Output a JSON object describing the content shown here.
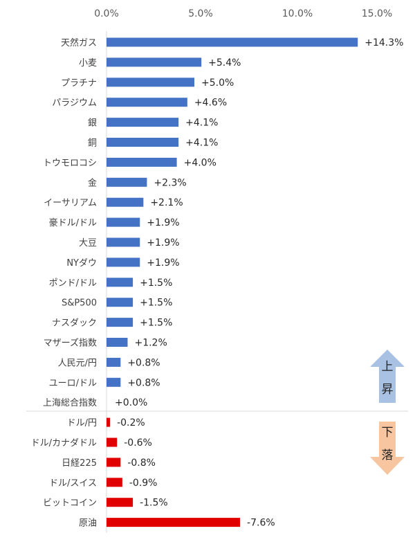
{
  "chart_data": {
    "type": "bar",
    "orientation": "horizontal",
    "title": "",
    "xlabel": "",
    "ylabel": "",
    "xlim": [
      0,
      15
    ],
    "x_ticks": [
      "0.0%",
      "5.0%",
      "10.0%",
      "15.0%"
    ],
    "x_axis_position": "top",
    "grid": false,
    "note": "",
    "categories": [
      "天然ガス",
      "小麦",
      "プラチナ",
      "パラジウム",
      "銀",
      "銅",
      "トウモロコシ",
      "金",
      "イーサリアム",
      "豪ドル/ドル",
      "大豆",
      "NYダウ",
      "ポンド/ドル",
      "S&P500",
      "ナスダック",
      "マザーズ指数",
      "人民元/円",
      "ユーロ/ドル",
      "上海総合指数",
      "ドル/円",
      "ドル/カナダドル",
      "日経225",
      "ドル/スイス",
      "ビットコイン",
      "原油"
    ],
    "values": [
      14.3,
      5.4,
      5.0,
      4.6,
      4.1,
      4.1,
      4.0,
      2.3,
      2.1,
      1.9,
      1.9,
      1.9,
      1.5,
      1.5,
      1.5,
      1.2,
      0.8,
      0.8,
      0.0,
      -0.2,
      -0.6,
      -0.8,
      -0.9,
      -1.5,
      -7.6
    ],
    "data_labels": [
      "+14.3%",
      "+5.4%",
      "+5.0%",
      "+4.6%",
      "+4.1%",
      "+4.1%",
      "+4.0%",
      "+2.3%",
      "+2.1%",
      "+1.9%",
      "+1.9%",
      "+1.9%",
      "+1.5%",
      "+1.5%",
      "+1.5%",
      "+1.2%",
      "+0.8%",
      "+0.8%",
      "+0.0%",
      "-0.2%",
      "-0.6%",
      "-0.8%",
      "-0.9%",
      "-1.5%",
      "-7.6%"
    ],
    "bars_show_magnitude": true,
    "colors": {
      "positive": "#4472C4",
      "negative": "#E00000",
      "up_arrow": "#A9C1E3",
      "down_arrow": "#F7C6A0"
    },
    "annotations": {
      "up": [
        "上",
        "昇"
      ],
      "down": [
        "下",
        "落"
      ]
    }
  }
}
